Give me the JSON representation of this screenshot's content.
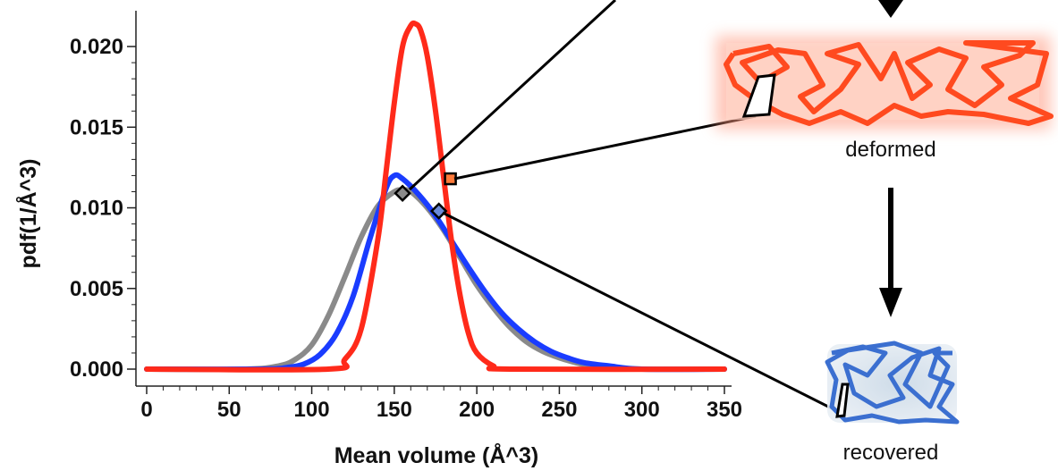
{
  "chart_data": {
    "type": "line",
    "xlabel": "Mean volume (Å^3)",
    "ylabel": "pdf(1/Å^3)",
    "xlim": [
      0,
      350
    ],
    "ylim": [
      0,
      0.0215
    ],
    "x_ticks": [
      "0",
      "50",
      "100",
      "150",
      "200",
      "250",
      "300",
      "350"
    ],
    "y_ticks": [
      "0.000",
      "0.005",
      "0.010",
      "0.015",
      "0.020"
    ],
    "grid": false,
    "legend": "none",
    "series": [
      {
        "color": "#8a8a8a",
        "x": [
          0,
          60,
          80,
          90,
          100,
          110,
          120,
          130,
          140,
          150,
          155,
          160,
          170,
          180,
          190,
          200,
          210,
          220,
          230,
          240,
          250,
          260,
          270,
          280,
          300,
          350
        ],
        "y": [
          0,
          0,
          0.0002,
          0.0006,
          0.0015,
          0.0033,
          0.0057,
          0.0082,
          0.0101,
          0.011,
          0.0111,
          0.011,
          0.01,
          0.0086,
          0.0069,
          0.0052,
          0.0038,
          0.0026,
          0.0017,
          0.0011,
          0.0007,
          0.0004,
          0.0002,
          0.0001,
          0,
          0
        ]
      },
      {
        "color": "#1a3cff",
        "x": [
          0,
          70,
          85,
          95,
          105,
          115,
          125,
          135,
          145,
          150,
          155,
          165,
          175,
          185,
          195,
          205,
          215,
          225,
          235,
          245,
          255,
          265,
          280,
          300,
          350
        ],
        "y": [
          0,
          0,
          0.0001,
          0.0003,
          0.0009,
          0.0022,
          0.0045,
          0.008,
          0.0112,
          0.012,
          0.0118,
          0.0108,
          0.0095,
          0.0079,
          0.0063,
          0.0048,
          0.0035,
          0.0025,
          0.0017,
          0.0011,
          0.0007,
          0.0004,
          0.0002,
          0,
          0
        ]
      },
      {
        "color": "#ff2a1a",
        "x": [
          0,
          110,
          120,
          130,
          140,
          145,
          150,
          155,
          160,
          163,
          166,
          170,
          175,
          180,
          185,
          190,
          195,
          200,
          210,
          220,
          350
        ],
        "y": [
          0,
          0,
          0.0006,
          0.0025,
          0.008,
          0.0122,
          0.0165,
          0.02,
          0.0213,
          0.0214,
          0.021,
          0.0194,
          0.016,
          0.0118,
          0.0077,
          0.0045,
          0.0022,
          0.001,
          0.0002,
          0,
          0
        ]
      }
    ],
    "markers": [
      {
        "shape": "square",
        "x": 184,
        "y": 0.0118,
        "fill": "#ff7a3a"
      },
      {
        "shape": "diamond",
        "x": 155,
        "y": 0.0109,
        "fill": "#8a8a8a"
      },
      {
        "shape": "diamond",
        "x": 177,
        "y": 0.0098,
        "fill": "#6a8ad8"
      }
    ],
    "annotations": [
      {
        "text": "deformed"
      },
      {
        "text": "recovered"
      }
    ]
  }
}
